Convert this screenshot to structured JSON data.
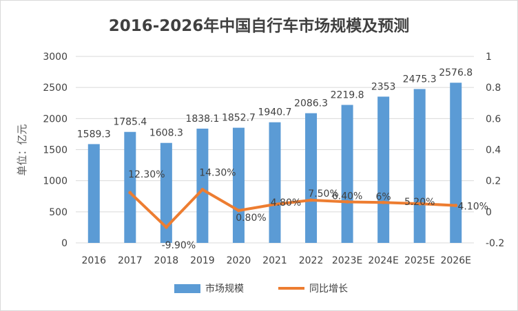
{
  "chart_data": {
    "type": "bar",
    "title": "2016-2026年中国自行车市场规模及预测",
    "ylabel": "单位：亿元",
    "y2label": "",
    "categories": [
      "2016",
      "2017",
      "2018",
      "2019",
      "2020",
      "2021",
      "2022",
      "2023E",
      "2024E",
      "2025E",
      "2026E"
    ],
    "ylim": [
      0,
      3000
    ],
    "yticks": [
      "0",
      "500",
      "1000",
      "1500",
      "2000",
      "2500",
      "3000"
    ],
    "y2lim": [
      -0.2,
      1
    ],
    "y2ticks": [
      "-0.2",
      "0",
      "0.2",
      "0.4",
      "0.6",
      "0.8",
      "1"
    ],
    "series": [
      {
        "name": "市场规模",
        "kind": "bar",
        "color": "#5b9bd5",
        "values": [
          1589.3,
          1785.4,
          1608.3,
          1838.1,
          1852.7,
          1940.7,
          2086.3,
          2219.8,
          2353,
          2475.3,
          2576.8
        ],
        "labels": [
          "1589.3",
          "1785.4",
          "1608.3",
          "1838.1",
          "1852.7",
          "1940.7",
          "2086.3",
          "2219.8",
          "2353",
          "2475.3",
          "2576.8"
        ]
      },
      {
        "name": "同比增长",
        "kind": "line",
        "axis": "right",
        "color": "#ed7d31",
        "values": [
          null,
          0.123,
          -0.099,
          0.143,
          0.008,
          0.048,
          0.075,
          0.064,
          0.06,
          0.052,
          0.041
        ],
        "labels": [
          null,
          "12.30%",
          "-9.90%",
          "14.30%",
          "0.80%",
          "4.80%",
          "7.50%",
          "6.40%",
          "6%",
          "5.20%",
          "4.10%"
        ]
      }
    ],
    "grid": true,
    "legend": "bottom"
  }
}
